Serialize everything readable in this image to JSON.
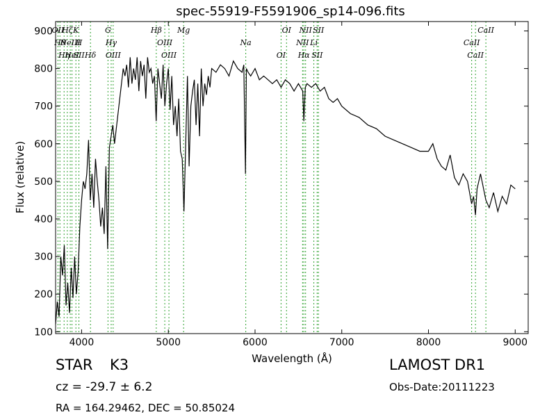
{
  "chart_data": {
    "type": "line",
    "title": "spec-55919-F5591906_sp14-096.fits",
    "xlabel": "Wavelength (Å)",
    "ylabel": "Flux (relative)",
    "xlim": [
      3700,
      9150
    ],
    "ylim": [
      95,
      925
    ],
    "xticks": [
      4000,
      5000,
      6000,
      7000,
      8000,
      9000
    ],
    "yticks": [
      100,
      200,
      300,
      400,
      500,
      600,
      700,
      800,
      900
    ],
    "grid": false,
    "series": [
      {
        "x": [
          3700,
          3720,
          3740,
          3760,
          3780,
          3800,
          3820,
          3840,
          3860,
          3880,
          3900,
          3920,
          3940,
          3960,
          3980,
          4000,
          4020,
          4040,
          4060,
          4080,
          4100,
          4120,
          4140,
          4160,
          4180,
          4200,
          4220,
          4240,
          4260,
          4280,
          4300,
          4320,
          4340,
          4360,
          4380,
          4400,
          4420,
          4440,
          4460,
          4480,
          4500,
          4520,
          4540,
          4560,
          4580,
          4600,
          4620,
          4640,
          4660,
          4680,
          4700,
          4720,
          4740,
          4760,
          4780,
          4800,
          4820,
          4840,
          4860,
          4880,
          4900,
          4920,
          4940,
          4960,
          4980,
          5000,
          5020,
          5040,
          5060,
          5080,
          5100,
          5120,
          5140,
          5160,
          5180,
          5200,
          5220,
          5240,
          5260,
          5280,
          5300,
          5320,
          5340,
          5360,
          5380,
          5400,
          5420,
          5440,
          5460,
          5480,
          5500,
          5550,
          5600,
          5650,
          5700,
          5750,
          5800,
          5850,
          5870,
          5890,
          5900,
          5920,
          5950,
          6000,
          6050,
          6100,
          6150,
          6200,
          6250,
          6300,
          6350,
          6400,
          6450,
          6500,
          6550,
          6563,
          6580,
          6600,
          6650,
          6700,
          6750,
          6800,
          6850,
          6900,
          6950,
          7000,
          7100,
          7200,
          7300,
          7400,
          7500,
          7600,
          7700,
          7800,
          7900,
          8000,
          8050,
          8100,
          8150,
          8200,
          8250,
          8300,
          8350,
          8400,
          8450,
          8498,
          8520,
          8542,
          8560,
          8600,
          8662,
          8700,
          8750,
          8800,
          8850,
          8900,
          8950,
          9000
        ],
        "values": [
          120,
          180,
          140,
          300,
          250,
          330,
          170,
          230,
          150,
          270,
          190,
          300,
          200,
          260,
          380,
          450,
          500,
          480,
          520,
          610,
          450,
          520,
          430,
          560,
          500,
          450,
          380,
          430,
          360,
          540,
          320,
          590,
          620,
          650,
          600,
          640,
          680,
          720,
          760,
          800,
          780,
          810,
          750,
          830,
          760,
          800,
          770,
          830,
          740,
          820,
          780,
          810,
          720,
          830,
          790,
          800,
          760,
          780,
          660,
          800,
          760,
          720,
          810,
          700,
          760,
          800,
          690,
          780,
          650,
          700,
          620,
          720,
          580,
          560,
          420,
          600,
          780,
          540,
          700,
          740,
          770,
          650,
          760,
          620,
          800,
          700,
          760,
          730,
          780,
          750,
          800,
          790,
          810,
          800,
          780,
          820,
          800,
          790,
          810,
          520,
          800,
          790,
          780,
          800,
          770,
          780,
          770,
          760,
          770,
          750,
          770,
          760,
          740,
          760,
          740,
          660,
          750,
          760,
          750,
          760,
          740,
          750,
          720,
          710,
          720,
          700,
          680,
          670,
          650,
          640,
          620,
          610,
          600,
          590,
          580,
          580,
          600,
          560,
          540,
          530,
          570,
          510,
          490,
          520,
          500,
          440,
          460,
          410,
          480,
          520,
          450,
          430,
          470,
          420,
          460,
          440,
          490,
          480
        ]
      }
    ],
    "lines": [
      {
        "x": 3727,
        "labels": [
          "OII"
        ]
      },
      {
        "x": 3750,
        "labels": [
          "Hθ"
        ]
      },
      {
        "x": 3798,
        "labels": [
          "Hη"
        ]
      },
      {
        "x": 3835,
        "labels": [
          "Hζ"
        ]
      },
      {
        "x": 3869,
        "labels": [
          "NeIII"
        ]
      },
      {
        "x": 3889,
        "labels": [
          "HeI"
        ]
      },
      {
        "x": 3934,
        "labels": [
          "K"
        ]
      },
      {
        "x": 3969,
        "labels": [
          "H",
          "SII"
        ]
      },
      {
        "x": 4102,
        "labels": [
          "Hδ"
        ]
      },
      {
        "x": 4304,
        "labels": [
          "G"
        ]
      },
      {
        "x": 4341,
        "labels": [
          "Hγ"
        ]
      },
      {
        "x": 4364,
        "labels": [
          "OIII"
        ]
      },
      {
        "x": 4861,
        "labels": [
          "Hβ"
        ]
      },
      {
        "x": 4959,
        "labels": [
          "OIII"
        ]
      },
      {
        "x": 5007,
        "labels": [
          "OIII"
        ]
      },
      {
        "x": 5176,
        "labels": [
          "Mg"
        ]
      },
      {
        "x": 5893,
        "labels": [
          "Na"
        ]
      },
      {
        "x": 6300,
        "labels": [
          "OI"
        ]
      },
      {
        "x": 6363,
        "labels": [
          "OI"
        ]
      },
      {
        "x": 6548,
        "labels": [
          "NII"
        ]
      },
      {
        "x": 6563,
        "labels": [
          "Hα"
        ]
      },
      {
        "x": 6583,
        "labels": [
          "NII"
        ]
      },
      {
        "x": 6678,
        "labels": [
          "Li"
        ]
      },
      {
        "x": 6716,
        "labels": [
          "SII"
        ]
      },
      {
        "x": 6731,
        "labels": [
          "SII"
        ]
      },
      {
        "x": 8498,
        "labels": [
          "CaII"
        ]
      },
      {
        "x": 8542,
        "labels": [
          "CaII"
        ]
      },
      {
        "x": 8662,
        "labels": [
          "CaII"
        ]
      }
    ],
    "colors": {
      "spectrum": "#000000",
      "lines": "#2ca02c"
    }
  },
  "info": {
    "class": "STAR",
    "subclass": "K3",
    "cz": "cz = -29.7 ± 6.2",
    "coords": "RA = 164.29462, DEC = 50.85024",
    "survey": "LAMOST DR1",
    "obs_date": "Obs-Date:20111223"
  }
}
